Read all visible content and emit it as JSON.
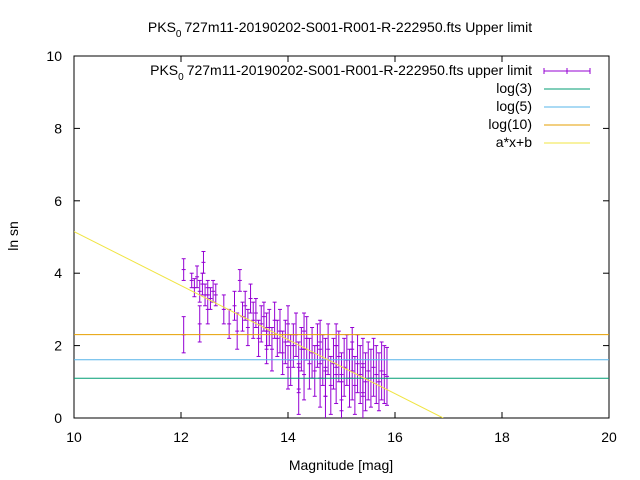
{
  "chart_data": {
    "type": "scatter",
    "title_parts": [
      "PKS",
      "0",
      "727m11-20190202-S001-R001-R-222950.fts Upper limit"
    ],
    "xlabel": "Magnitude [mag]",
    "ylabel": "ln sn",
    "xlim": [
      10,
      20
    ],
    "ylim": [
      0,
      10
    ],
    "xticks": [
      10,
      12,
      14,
      16,
      18,
      20
    ],
    "yticks": [
      0,
      2,
      4,
      6,
      8,
      10
    ],
    "legend_position": "top-right",
    "series": [
      {
        "name_parts": [
          "PKS",
          "0",
          "727m11-20190202-S001-R001-R-222950.fts upper limit"
        ],
        "kind": "errorbar",
        "color": "#9400d3",
        "points": [
          [
            12.05,
            4.1,
            0.3
          ],
          [
            12.05,
            2.3,
            0.5
          ],
          [
            12.2,
            3.8,
            0.2
          ],
          [
            12.25,
            3.6,
            0.25
          ],
          [
            12.3,
            3.9,
            0.3
          ],
          [
            12.35,
            3.5,
            0.3
          ],
          [
            12.35,
            2.6,
            0.5
          ],
          [
            12.4,
            3.7,
            0.3
          ],
          [
            12.42,
            4.3,
            0.3
          ],
          [
            12.45,
            3.4,
            0.3
          ],
          [
            12.5,
            3.6,
            0.2
          ],
          [
            12.55,
            3.3,
            0.3
          ],
          [
            12.6,
            3.5,
            0.3
          ],
          [
            12.65,
            3.4,
            0.3
          ],
          [
            12.5,
            3.0,
            0.4
          ],
          [
            12.8,
            3.0,
            0.4
          ],
          [
            12.9,
            2.6,
            0.4
          ],
          [
            13.0,
            3.1,
            0.4
          ],
          [
            13.05,
            2.4,
            0.5
          ],
          [
            13.1,
            3.8,
            0.3
          ],
          [
            13.15,
            2.8,
            0.4
          ],
          [
            13.2,
            3.1,
            0.4
          ],
          [
            13.25,
            2.5,
            0.5
          ],
          [
            13.3,
            3.3,
            0.4
          ],
          [
            13.35,
            2.7,
            0.5
          ],
          [
            13.4,
            2.9,
            0.4
          ],
          [
            13.45,
            2.2,
            0.5
          ],
          [
            13.5,
            2.6,
            0.5
          ],
          [
            13.55,
            2.8,
            0.4
          ],
          [
            13.6,
            2.4,
            0.5
          ],
          [
            13.65,
            2.5,
            0.5
          ],
          [
            13.7,
            1.9,
            0.6
          ],
          [
            13.75,
            2.7,
            0.5
          ],
          [
            13.8,
            2.2,
            0.5
          ],
          [
            13.85,
            2.4,
            0.6
          ],
          [
            13.9,
            1.8,
            0.6
          ],
          [
            13.95,
            2.1,
            0.6
          ],
          [
            14.0,
            2.6,
            0.5
          ],
          [
            14.05,
            1.6,
            0.7
          ],
          [
            14.1,
            2.0,
            0.6
          ],
          [
            14.15,
            2.3,
            0.6
          ],
          [
            14.2,
            1.4,
            0.7
          ],
          [
            14.25,
            1.9,
            0.6
          ],
          [
            14.3,
            1.2,
            0.7
          ],
          [
            14.35,
            2.2,
            0.6
          ],
          [
            14.4,
            1.5,
            0.7
          ],
          [
            14.45,
            1.8,
            0.7
          ],
          [
            14.5,
            1.3,
            0.7
          ],
          [
            14.55,
            2.0,
            0.6
          ],
          [
            14.6,
            1.1,
            0.8
          ],
          [
            14.65,
            1.6,
            0.7
          ],
          [
            14.7,
            1.4,
            0.8
          ],
          [
            14.75,
            1.9,
            0.7
          ],
          [
            14.8,
            0.9,
            0.8
          ],
          [
            14.85,
            1.5,
            0.7
          ],
          [
            14.9,
            1.2,
            0.8
          ],
          [
            14.95,
            1.7,
            0.7
          ],
          [
            15.0,
            1.0,
            0.8
          ],
          [
            15.05,
            1.4,
            0.8
          ],
          [
            15.1,
            1.6,
            0.7
          ],
          [
            15.15,
            1.1,
            0.8
          ],
          [
            15.2,
            1.3,
            0.8
          ],
          [
            15.25,
            0.9,
            0.8
          ],
          [
            15.3,
            1.5,
            0.8
          ],
          [
            15.35,
            1.2,
            0.8
          ],
          [
            15.4,
            1.4,
            0.8
          ],
          [
            15.45,
            1.0,
            0.8
          ],
          [
            15.5,
            1.3,
            0.8
          ],
          [
            15.55,
            1.1,
            0.8
          ],
          [
            15.6,
            1.4,
            0.8
          ],
          [
            15.65,
            1.2,
            0.8
          ],
          [
            15.7,
            1.0,
            0.8
          ],
          [
            15.75,
            1.3,
            0.8
          ],
          [
            15.8,
            1.2,
            0.8
          ],
          [
            15.85,
            1.15,
            0.8
          ],
          [
            13.6,
            2.0,
            0.5
          ],
          [
            14.0,
            1.4,
            0.6
          ],
          [
            14.3,
            2.4,
            0.5
          ],
          [
            14.6,
            2.1,
            0.6
          ],
          [
            14.9,
            2.0,
            0.6
          ],
          [
            15.2,
            1.9,
            0.6
          ],
          [
            15.0,
            0.5,
            0.7
          ],
          [
            14.7,
            0.6,
            0.7
          ],
          [
            15.4,
            0.7,
            0.8
          ],
          [
            14.2,
            0.8,
            0.7
          ]
        ]
      },
      {
        "name": "log(3)",
        "kind": "hline",
        "color": "#009e73",
        "y": 1.0986
      },
      {
        "name": "log(5)",
        "kind": "hline",
        "color": "#56b4e9",
        "y": 1.6094
      },
      {
        "name": "log(10)",
        "kind": "hline",
        "color": "#e69f00",
        "y": 2.3026
      },
      {
        "name": "a*x+b",
        "kind": "line",
        "color": "#f0e442",
        "x": [
          10,
          16.9
        ],
        "y": [
          5.15,
          0
        ]
      }
    ]
  }
}
